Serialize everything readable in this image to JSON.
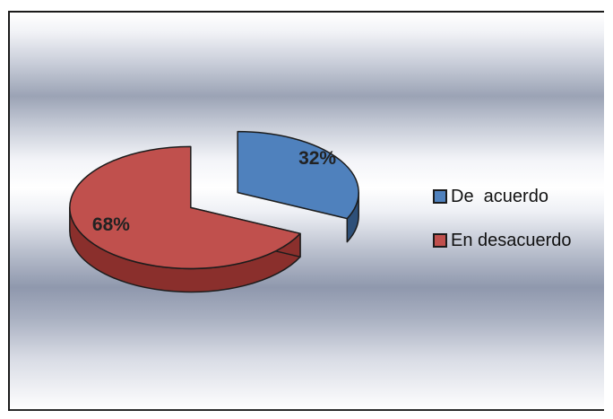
{
  "chart_data": {
    "type": "pie",
    "title": "",
    "style": "3d-exploded",
    "slices": [
      {
        "label": "De  acuerdo",
        "value": 32,
        "data_label": "32%",
        "color": "#4f81bd",
        "side_color": "#2e5079"
      },
      {
        "label": "En desacuerdo",
        "value": 68,
        "data_label": "68%",
        "color": "#c0504d",
        "side_color": "#8a2f2c"
      }
    ],
    "legend_position": "right"
  }
}
